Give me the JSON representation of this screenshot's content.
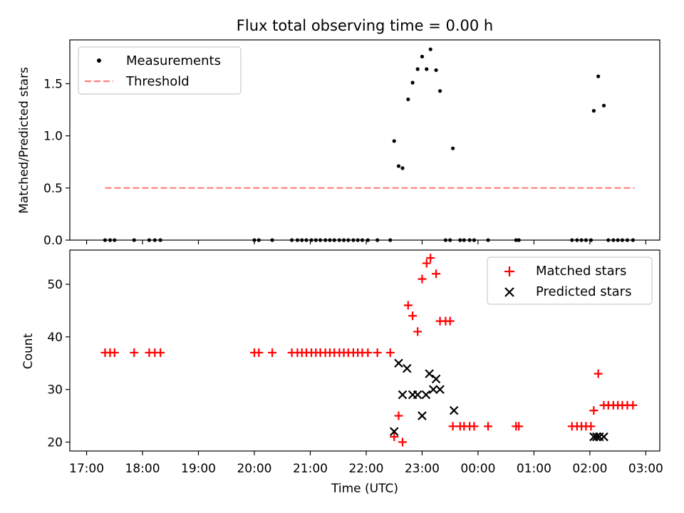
{
  "chart_data": [
    {
      "type": "scatter",
      "title": "Flux total observing time = 0.00 h",
      "xlabel": "",
      "ylabel": "Matched/Predicted stars",
      "ylim": [
        0,
        1.92
      ],
      "yticks": [
        0.0,
        0.5,
        1.0,
        1.5
      ],
      "ytick_labels": [
        "0.0",
        "0.5",
        "1.0",
        "1.5"
      ],
      "xlim": [
        16.7,
        27.25
      ],
      "xticks": [
        17,
        18,
        19,
        20,
        21,
        22,
        23,
        24,
        25,
        26,
        27
      ],
      "legend": {
        "position": "top-left",
        "entries": [
          "Measurements",
          "Threshold"
        ]
      },
      "threshold": {
        "name": "Threshold",
        "value": 0.5,
        "x_range": [
          17.33,
          26.8
        ],
        "color": "#ff7f7f"
      },
      "series": [
        {
          "name": "Measurements",
          "color": "#000000",
          "x": [
            17.33,
            17.42,
            17.5,
            17.85,
            18.12,
            18.22,
            18.32,
            20.0,
            20.08,
            20.32,
            20.67,
            20.77,
            20.85,
            20.93,
            21.02,
            21.1,
            21.18,
            21.27,
            21.35,
            21.43,
            21.52,
            21.6,
            21.68,
            21.77,
            21.85,
            21.93,
            22.03,
            22.2,
            22.43,
            22.5,
            22.58,
            22.65,
            22.75,
            22.83,
            22.92,
            23.0,
            23.08,
            23.15,
            23.25,
            23.32,
            23.42,
            23.5,
            23.55,
            23.68,
            23.75,
            23.85,
            23.93,
            24.18,
            24.68,
            24.73,
            25.68,
            25.77,
            25.85,
            25.93,
            26.02,
            26.07,
            26.15,
            26.25,
            26.33,
            26.42,
            26.5,
            26.58,
            26.67,
            26.77
          ],
          "y": [
            0,
            0,
            0,
            0,
            0,
            0,
            0,
            0,
            0,
            0,
            0,
            0,
            0,
            0,
            0,
            0,
            0,
            0,
            0,
            0,
            0,
            0,
            0,
            0,
            0,
            0,
            0,
            0,
            0,
            0.95,
            0.71,
            0.69,
            1.35,
            1.51,
            1.64,
            1.76,
            1.64,
            1.83,
            1.63,
            1.43,
            0,
            0,
            0.88,
            0,
            0,
            0,
            0,
            0,
            0,
            0,
            0,
            0,
            0,
            0,
            0,
            1.24,
            1.57,
            1.29,
            0,
            0,
            0,
            0,
            0,
            0
          ]
        }
      ]
    },
    {
      "type": "scatter",
      "title": "",
      "xlabel": "Time (UTC)",
      "ylabel": "Count",
      "ylim": [
        18.3,
        56.5
      ],
      "yticks": [
        20,
        30,
        40,
        50
      ],
      "ytick_labels": [
        "20",
        "30",
        "40",
        "50"
      ],
      "xlim": [
        16.7,
        27.25
      ],
      "xticks": [
        17,
        18,
        19,
        20,
        21,
        22,
        23,
        24,
        25,
        26,
        27
      ],
      "xtick_labels": [
        "17:00",
        "18:00",
        "19:00",
        "20:00",
        "21:00",
        "22:00",
        "23:00",
        "00:00",
        "01:00",
        "02:00",
        "03:00"
      ],
      "legend": {
        "position": "top-right",
        "entries": [
          "Matched stars",
          "Predicted stars"
        ]
      },
      "series": [
        {
          "name": "Matched stars",
          "marker": "plus",
          "color": "#ff0000",
          "x": [
            17.33,
            17.42,
            17.5,
            17.85,
            18.12,
            18.22,
            18.32,
            20.0,
            20.08,
            20.32,
            20.67,
            20.77,
            20.85,
            20.93,
            21.02,
            21.1,
            21.18,
            21.27,
            21.35,
            21.43,
            21.52,
            21.6,
            21.68,
            21.77,
            21.85,
            21.93,
            22.03,
            22.2,
            22.43,
            22.5,
            22.58,
            22.65,
            22.75,
            22.83,
            22.92,
            23.0,
            23.08,
            23.15,
            23.25,
            23.32,
            23.42,
            23.5,
            23.55,
            23.68,
            23.75,
            23.85,
            23.93,
            24.18,
            24.68,
            24.73,
            25.68,
            25.77,
            25.85,
            25.93,
            26.02,
            26.07,
            26.15,
            26.25,
            26.33,
            26.42,
            26.5,
            26.58,
            26.67,
            26.77
          ],
          "y": [
            37,
            37,
            37,
            37,
            37,
            37,
            37,
            37,
            37,
            37,
            37,
            37,
            37,
            37,
            37,
            37,
            37,
            37,
            37,
            37,
            37,
            37,
            37,
            37,
            37,
            37,
            37,
            37,
            37,
            21,
            25,
            20,
            46,
            44,
            41,
            51,
            54,
            55,
            52,
            43,
            43,
            43,
            23,
            23,
            23,
            23,
            23,
            23,
            23,
            23,
            23,
            23,
            23,
            23,
            23,
            26,
            33,
            27,
            27,
            27,
            27,
            27,
            27,
            27
          ]
        },
        {
          "name": "Predicted stars",
          "marker": "x",
          "color": "#000000",
          "x": [
            22.5,
            22.58,
            22.65,
            22.73,
            22.83,
            22.92,
            23.0,
            23.07,
            23.13,
            23.2,
            23.25,
            23.32,
            23.57,
            26.07,
            26.12,
            26.17,
            26.25
          ],
          "y": [
            22,
            35,
            29,
            34,
            29,
            29,
            25,
            29,
            33,
            30,
            32,
            30,
            26,
            21,
            21,
            21,
            21
          ]
        }
      ]
    }
  ]
}
